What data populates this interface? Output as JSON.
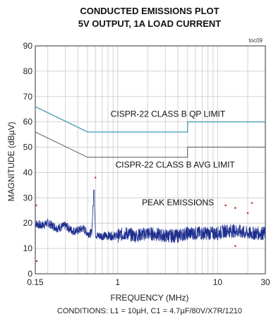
{
  "chart_data": {
    "type": "line",
    "title": "CONDUCTED EMISSIONS PLOT",
    "subtitle": "5V OUTPUT, 1A LOAD CURRENT",
    "tag": "toc09",
    "xlabel": "FREQUENCY (MHz)",
    "ylabel": "MAGNITUDE (dBµV)",
    "conditions": "CONDITIONS: L1 = 10µH, C1 = 4.7µF/80V/X7R/1210",
    "x_scale": "log",
    "xlim": [
      0.15,
      30
    ],
    "ylim": [
      0,
      90
    ],
    "grid": true,
    "x_ticks": [
      {
        "value": 0.15,
        "label": "0.15"
      },
      {
        "value": 1,
        "label": "1"
      },
      {
        "value": 10,
        "label": "10"
      },
      {
        "value": 30,
        "label": "30"
      }
    ],
    "y_ticks": [
      0,
      10,
      20,
      30,
      40,
      50,
      60,
      70,
      80,
      90
    ],
    "annotations": [
      {
        "text": "CISPR-22 CLASS B QP LIMIT",
        "x": 0.85,
        "y": 62
      },
      {
        "text": "CISPR-22 CLASS B AVG LIMIT",
        "x": 0.95,
        "y": 42
      },
      {
        "text": "PEAK EMISSIONS",
        "x": 1.75,
        "y": 27
      }
    ],
    "series": [
      {
        "name": "CISPR-22 CLASS B QP LIMIT",
        "color": "#4aa3b8",
        "x": [
          0.15,
          0.5,
          5,
          5,
          30
        ],
        "y": [
          66,
          56,
          56,
          60,
          60
        ]
      },
      {
        "name": "CISPR-22 CLASS B AVG LIMIT",
        "color": "#555555",
        "x": [
          0.15,
          0.5,
          5,
          5,
          30
        ],
        "y": [
          56,
          46,
          46,
          50,
          50
        ]
      },
      {
        "name": "PEAK EMISSIONS",
        "color": "#1f2f8f",
        "x": [
          0.15,
          0.17,
          0.2,
          0.25,
          0.3,
          0.35,
          0.4,
          0.45,
          0.5,
          0.55,
          0.58,
          0.6,
          0.62,
          0.7,
          0.8,
          0.9,
          1,
          1.2,
          1.5,
          2,
          3,
          4,
          5,
          6,
          8,
          10,
          12,
          15,
          20,
          25,
          30
        ],
        "y": [
          20,
          19,
          20,
          18,
          19,
          17,
          17,
          18,
          16,
          16,
          33,
          16,
          15,
          15,
          15,
          15,
          15,
          16,
          15,
          16,
          15,
          15,
          16,
          16,
          16,
          16,
          17,
          17,
          16,
          16,
          16
        ]
      }
    ],
    "markers": [
      {
        "x": 0.153,
        "y": 27
      },
      {
        "x": 0.155,
        "y": 5
      },
      {
        "x": 0.6,
        "y": 38
      },
      {
        "x": 12,
        "y": 27
      },
      {
        "x": 15,
        "y": 26
      },
      {
        "x": 20,
        "y": 24
      },
      {
        "x": 22,
        "y": 28
      },
      {
        "x": 15,
        "y": 11
      }
    ]
  }
}
